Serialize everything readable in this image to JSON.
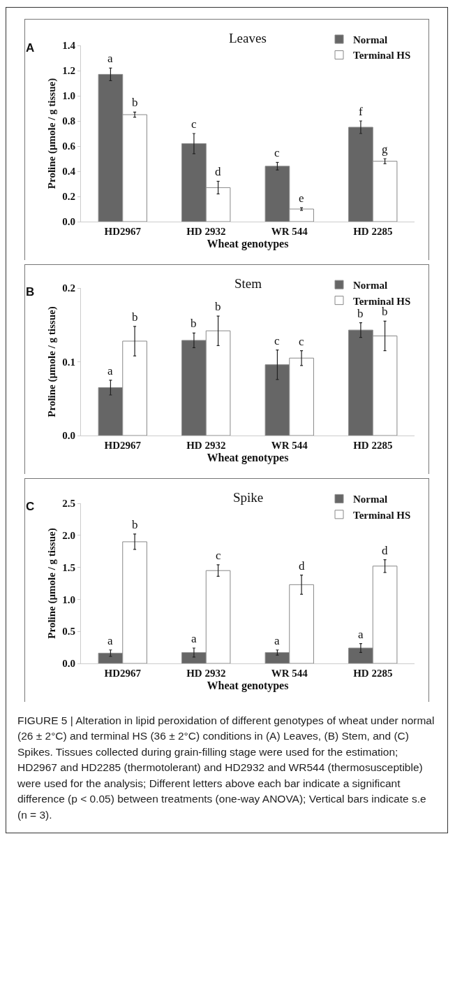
{
  "chart_data": [
    {
      "type": "bar",
      "title": "Leaves",
      "xlabel": "Wheat genotypes",
      "ylabel": "Proline (µmole / g tissue)",
      "categories": [
        "HD2967",
        "HD 2932",
        "WR 544",
        "HD 2285"
      ],
      "series": [
        {
          "name": "Normal",
          "color": "#666666",
          "values": [
            1.17,
            0.62,
            0.44,
            0.75
          ],
          "errors": [
            0.05,
            0.08,
            0.03,
            0.05
          ],
          "value_labels": [
            "a",
            "c",
            "c",
            "f"
          ]
        },
        {
          "name": "Terminal HS",
          "color": "#ffffff",
          "values": [
            0.85,
            0.27,
            0.1,
            0.48
          ],
          "errors": [
            0.02,
            0.05,
            0.01,
            0.02
          ],
          "value_labels": [
            "b",
            "d",
            "e",
            "g"
          ]
        }
      ],
      "ylim": [
        0,
        1.4
      ],
      "yticks": [
        {
          "value": 0,
          "label": "0.0"
        },
        0.2,
        0.4,
        0.6,
        0.8,
        {
          "value": 1,
          "label": "1.0"
        },
        1.2,
        1.4
      ],
      "grid": false,
      "legend": "top right",
      "annotations": [
        "A"
      ]
    },
    {
      "type": "bar",
      "title": "Stem",
      "xlabel": "Wheat genotypes",
      "ylabel": "Proline (µmole / g tissue)",
      "categories": [
        "HD2967",
        "HD 2932",
        "WR 544",
        "HD 2285"
      ],
      "series": [
        {
          "name": "Normal",
          "color": "#666666",
          "values": [
            0.065,
            0.129,
            0.096,
            0.143
          ],
          "errors": [
            0.01,
            0.01,
            0.02,
            0.01
          ],
          "value_labels": [
            "a",
            "b",
            "c",
            "b"
          ]
        },
        {
          "name": "Terminal HS",
          "color": "#ffffff",
          "values": [
            0.128,
            0.142,
            0.105,
            0.135
          ],
          "errors": [
            0.02,
            0.02,
            0.01,
            0.02
          ],
          "value_labels": [
            "b",
            "b",
            "c",
            "b"
          ]
        }
      ],
      "ylim": [
        0,
        0.2
      ],
      "yticks": [
        {
          "value": 0,
          "label": "0.0"
        },
        0.1,
        0.2
      ],
      "grid": false,
      "legend": "top right",
      "annotations": [
        "B"
      ]
    },
    {
      "type": "bar",
      "title": "Spike",
      "xlabel": "Wheat genotypes",
      "ylabel": "Proline (µmole / g tissue)",
      "categories": [
        "HD2967",
        "HD 2932",
        "WR 544",
        "HD 2285"
      ],
      "series": [
        {
          "name": "Normal",
          "color": "#666666",
          "values": [
            0.16,
            0.17,
            0.17,
            0.24
          ],
          "errors": [
            0.05,
            0.07,
            0.04,
            0.07
          ],
          "value_labels": [
            "a",
            "a",
            "a",
            "a"
          ]
        },
        {
          "name": "Terminal HS",
          "color": "#ffffff",
          "values": [
            1.9,
            1.45,
            1.23,
            1.52
          ],
          "errors": [
            0.12,
            0.09,
            0.15,
            0.1
          ],
          "value_labels": [
            "b",
            "c",
            "d",
            "d"
          ]
        }
      ],
      "ylim": [
        0,
        2.5
      ],
      "yticks": [
        {
          "value": 0,
          "label": "0.0"
        },
        0.5,
        {
          "value": 1,
          "label": "1.0"
        },
        1.5,
        {
          "value": 2,
          "label": "2.0"
        },
        2.5
      ],
      "grid": false,
      "legend": "top right",
      "annotations": [
        "C",
        "FIGURE 5 | Alteration in lipid peroxidation of different genotypes of wheat under normal (26 ± 2°C) and terminal HS (36 ± 2°C) conditions in (A) Leaves, (B) Stem, and (C) Spikes. Tissues collected during grain-filling stage were used for the estimation; HD2967 and HD2285 (thermotolerant) and HD2932 and WR544 (thermosusceptible) were used for the analysis; Different letters above each bar indicate a significant difference (p < 0.05) between treatments (one-way ANOVA); Vertical bars indicate s.e (n = 3)."
      ]
    }
  ]
}
